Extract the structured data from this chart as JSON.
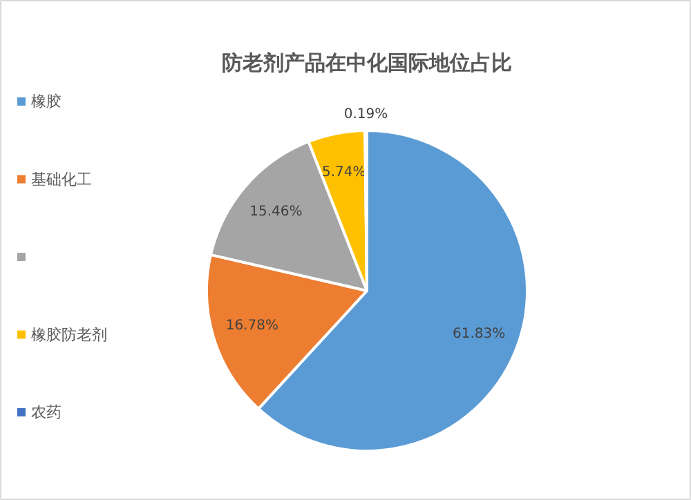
{
  "chart_data": {
    "type": "pie",
    "title": "防老剂产品在中化国际地位占比",
    "categories": [
      "橡胶",
      "基础化工",
      null,
      "橡胶防老剂",
      "农药"
    ],
    "values": [
      61.83,
      16.78,
      15.46,
      5.74,
      0.19
    ],
    "colors": [
      "#5b9bd5",
      "#ed7d31",
      "#a5a5a5",
      "#ffc000",
      "#4472c4"
    ],
    "value_labels": [
      "61.83%",
      "16.78%",
      "15.46%",
      "5.74%",
      "0.19%"
    ],
    "legend": "left"
  }
}
